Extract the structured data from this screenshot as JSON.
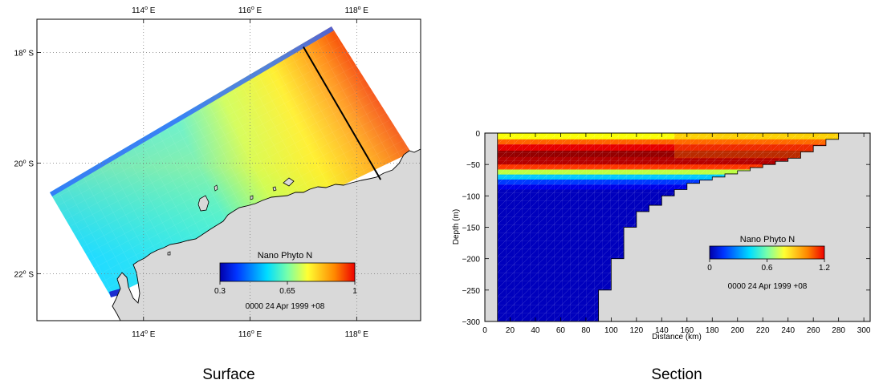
{
  "chart_data": [
    {
      "type": "heatmap",
      "title": "Surface",
      "top_axis": {
        "ticks": [
          {
            "v": 114,
            "label": "114",
            "sup": "o",
            "suffix": " E"
          },
          {
            "v": 116,
            "label": "116",
            "sup": "o",
            "suffix": " E"
          },
          {
            "v": 118,
            "label": "118",
            "sup": "o",
            "suffix": " E"
          }
        ]
      },
      "bottom_axis": {
        "ticks": [
          {
            "v": 114,
            "label": "114",
            "sup": "o",
            "suffix": " E"
          },
          {
            "v": 116,
            "label": "116",
            "sup": "o",
            "suffix": " E"
          },
          {
            "v": 118,
            "label": "118",
            "sup": "o",
            "suffix": " E"
          }
        ]
      },
      "left_axis": {
        "ticks": [
          {
            "v": -18,
            "label": "18",
            "sup": "o",
            "suffix": " S"
          },
          {
            "v": -20,
            "label": "20",
            "sup": "o",
            "suffix": " S"
          },
          {
            "v": -22,
            "label": "22",
            "sup": "o",
            "suffix": " S"
          }
        ]
      },
      "lon_range": [
        112.0,
        119.2
      ],
      "lat_range": [
        -22.85,
        -17.4
      ],
      "grid": true,
      "colorbar": {
        "title": "Nano Phyto N",
        "min": 0.3,
        "max": 1.0,
        "tick_labels": [
          {
            "v": 0.3,
            "label": "0.3"
          },
          {
            "v": 0.65,
            "label": "0.65"
          },
          {
            "v": 1.0,
            "label": "1"
          }
        ],
        "timestamp": "0000 24 Apr 1999 +08"
      },
      "section_line": {
        "start": [
          117.0,
          -17.9
        ],
        "end": [
          118.45,
          -20.3
        ]
      },
      "land_color": "#d9d9d9"
    },
    {
      "type": "heatmap",
      "title": "Section",
      "xlabel": "Distance  (km)",
      "ylabel": "Depth  (m)",
      "xlim": [
        0,
        305
      ],
      "ylim": [
        -300,
        0
      ],
      "x_ticks": [
        0,
        20,
        40,
        60,
        80,
        100,
        120,
        140,
        160,
        180,
        200,
        220,
        240,
        260,
        280,
        300
      ],
      "y_ticks": [
        {
          "v": 0,
          "label": "0"
        },
        {
          "v": -50,
          "label": "−50"
        },
        {
          "v": -100,
          "label": "−100"
        },
        {
          "v": -150,
          "label": "−150"
        },
        {
          "v": -200,
          "label": "−200"
        },
        {
          "v": -250,
          "label": "−250"
        },
        {
          "v": -300,
          "label": "−300"
        }
      ],
      "colorbar": {
        "title": "Nano Phyto N",
        "min": 0,
        "max": 1.2,
        "tick_labels": [
          {
            "v": 0,
            "label": "0"
          },
          {
            "v": 0.6,
            "label": "0.6"
          },
          {
            "v": 1.2,
            "label": "1.2"
          }
        ],
        "timestamp": "0000 24 Apr 1999 +08"
      },
      "bathymetry": [
        [
          10,
          -300
        ],
        [
          80,
          -300
        ],
        [
          90,
          -250
        ],
        [
          100,
          -200
        ],
        [
          110,
          -150
        ],
        [
          120,
          -125
        ],
        [
          130,
          -115
        ],
        [
          140,
          -100
        ],
        [
          150,
          -90
        ],
        [
          160,
          -80
        ],
        [
          170,
          -75
        ],
        [
          180,
          -70
        ],
        [
          190,
          -65
        ],
        [
          200,
          -60
        ],
        [
          210,
          -55
        ],
        [
          220,
          -50
        ],
        [
          230,
          -45
        ],
        [
          240,
          -40
        ],
        [
          250,
          -30
        ],
        [
          260,
          -20
        ],
        [
          270,
          -10
        ],
        [
          280,
          0
        ]
      ],
      "land_color": "#d9d9d9"
    }
  ]
}
